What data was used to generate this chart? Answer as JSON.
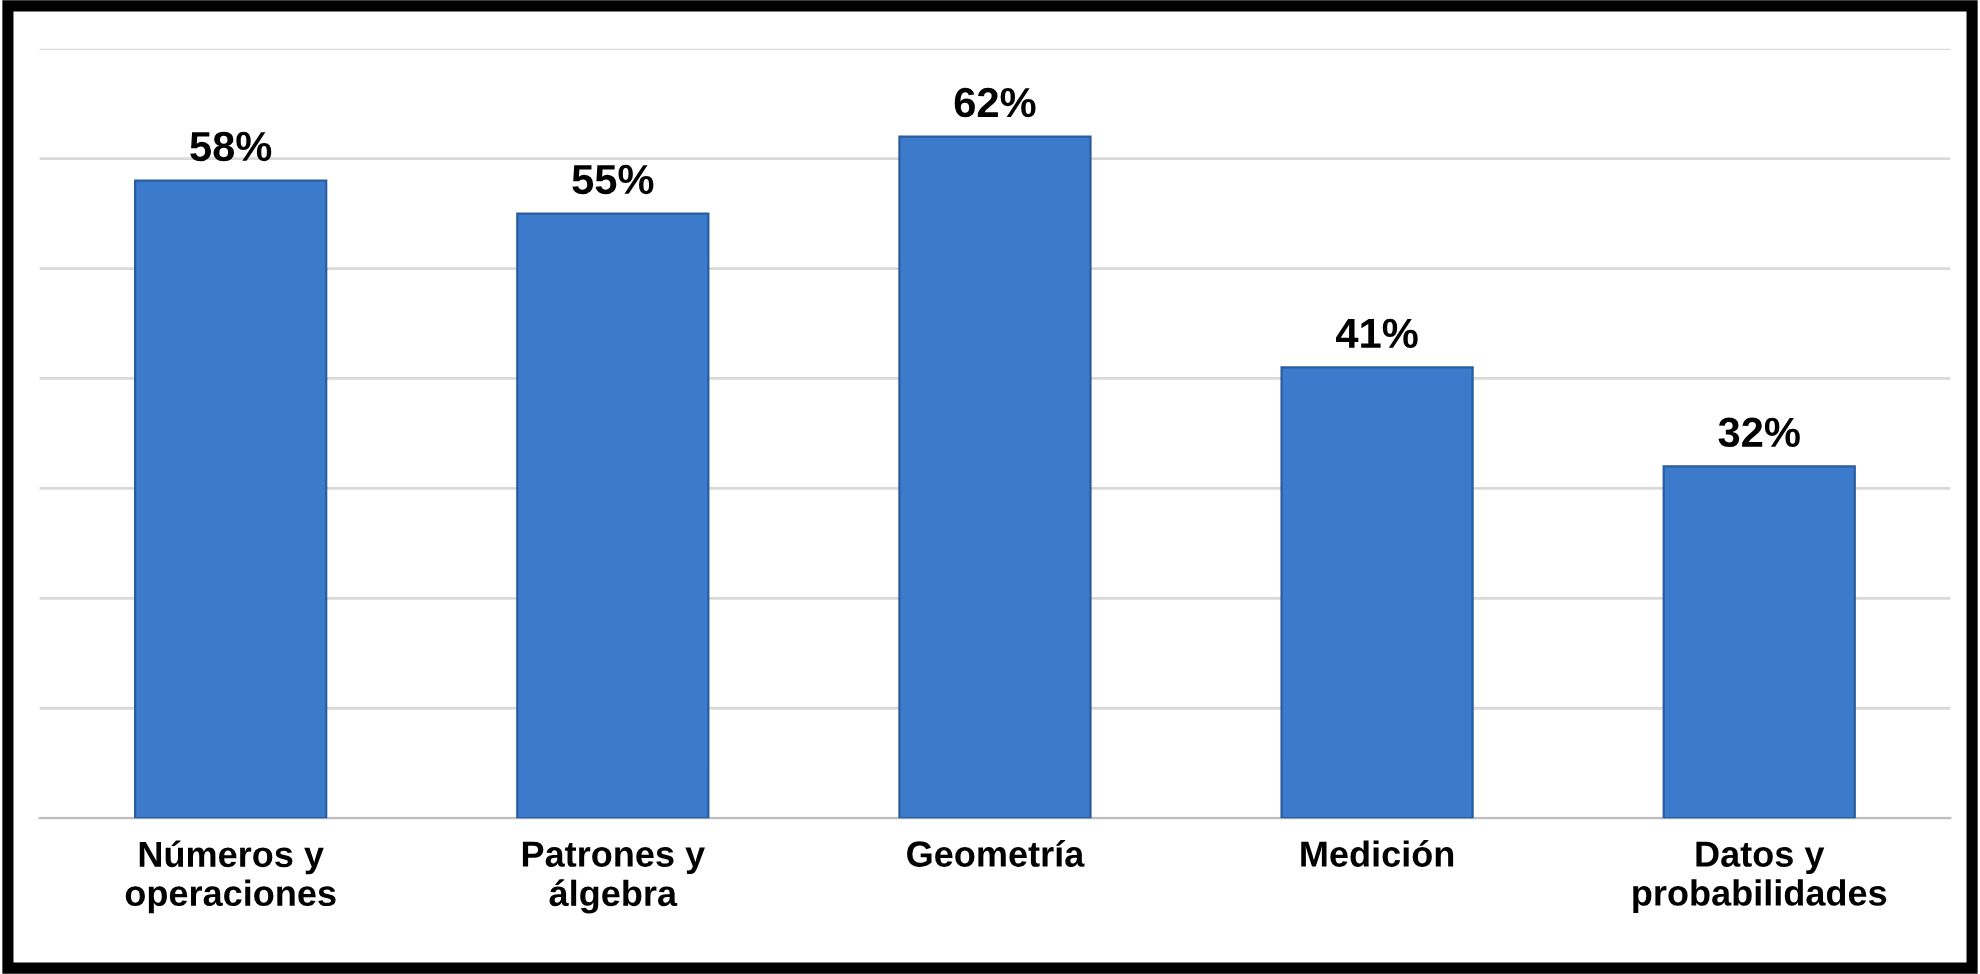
{
  "chart_data": {
    "type": "bar",
    "categories": [
      "Números y\noperaciones",
      "Patrones y\nálgebra",
      "Geometría",
      "Medición",
      "Datos y\nprobabilidades"
    ],
    "values": [
      58,
      55,
      62,
      41,
      32
    ],
    "value_labels": [
      "58%",
      "55%",
      "62%",
      "41%",
      "32%"
    ],
    "color": "#3c7bcb",
    "ylim": [
      0,
      70
    ],
    "yticks": [
      {
        "value": 0,
        "label": null
      },
      {
        "value": 10,
        "label": null
      },
      {
        "value": 20,
        "label": null
      },
      {
        "value": 30,
        "label": null
      },
      {
        "value": 40,
        "label": null
      },
      {
        "value": 50,
        "label": null
      },
      {
        "value": 60,
        "label": null
      },
      {
        "value": 70,
        "label": null
      }
    ],
    "grid": "y",
    "tick_labels": "x"
  }
}
